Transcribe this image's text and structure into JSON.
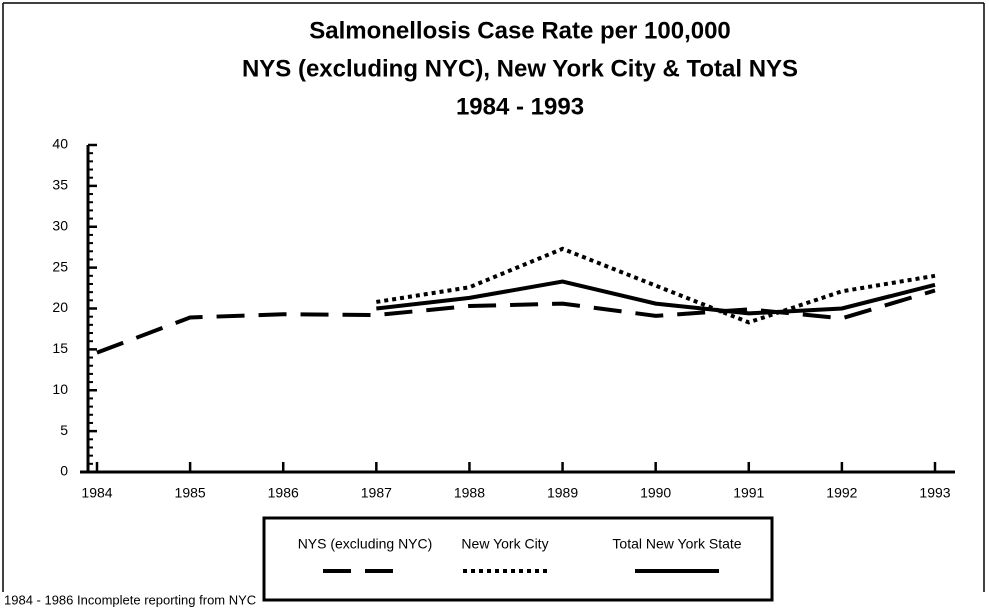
{
  "chart_data": {
    "type": "line",
    "title": [
      "Salmonellosis Case Rate per 100,000",
      "NYS (excluding NYC), New York City & Total NYS",
      "1984 - 1993"
    ],
    "categories": [
      "1984",
      "1985",
      "1986",
      "1987",
      "1988",
      "1989",
      "1990",
      "1991",
      "1992",
      "1993"
    ],
    "series": [
      {
        "name": "NYS (excluding NYC)",
        "color": "#000000",
        "style": "dashed",
        "values": [
          14.6,
          18.9,
          19.3,
          19.2,
          20.3,
          20.6,
          19.1,
          19.9,
          18.8,
          22.2
        ]
      },
      {
        "name": "New York City",
        "color": "#000000",
        "style": "dotted",
        "values": [
          null,
          null,
          null,
          20.8,
          22.6,
          27.3,
          22.8,
          18.3,
          22.1,
          24.0
        ]
      },
      {
        "name": "Total New York State",
        "color": "#000000",
        "style": "solid",
        "values": [
          null,
          null,
          null,
          20.0,
          21.3,
          23.3,
          20.6,
          19.4,
          20.0,
          22.9
        ]
      }
    ],
    "ylim": [
      0,
      40
    ],
    "yticks": [
      0,
      5,
      10,
      15,
      20,
      25,
      30,
      35,
      40
    ],
    "legend": "bottom",
    "annotation": "1984 - 1986 Incomplete reporting from NYC"
  }
}
